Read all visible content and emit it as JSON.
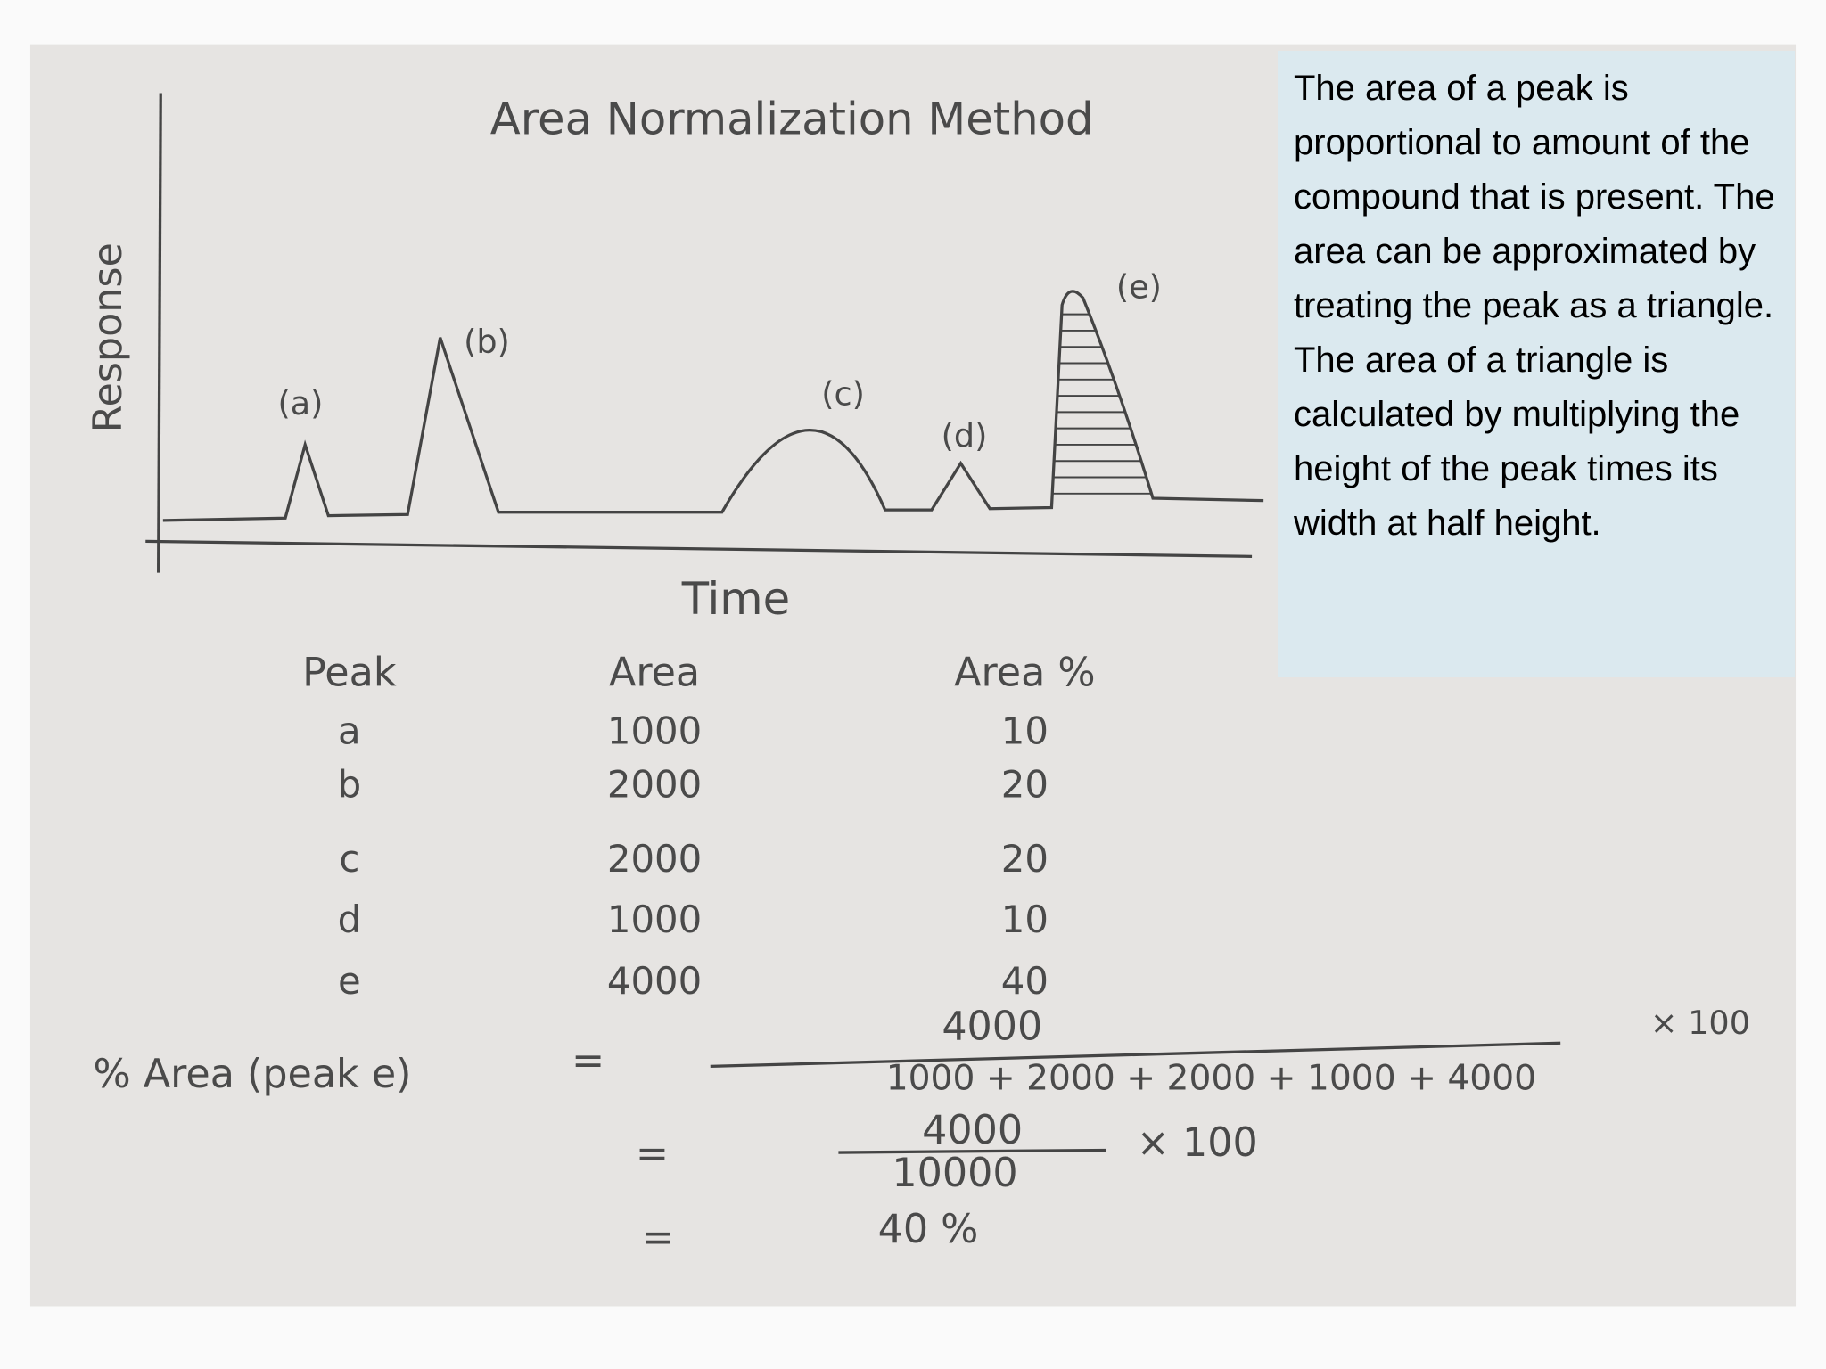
{
  "figure": {
    "title": "Area Normalization Method",
    "y_label": "Response",
    "x_label": "Time",
    "peak_labels": [
      "(a)",
      "(b)",
      "(c)",
      "(d)",
      "(e)"
    ]
  },
  "table": {
    "header": [
      "Peak",
      "Area",
      "Area %"
    ],
    "rows": [
      [
        "a",
        1000,
        10
      ],
      [
        "b",
        2000,
        20
      ],
      [
        "c",
        2000,
        20
      ],
      [
        "d",
        1000,
        10
      ],
      [
        "e",
        4000,
        40
      ]
    ]
  },
  "calculation": {
    "lhs": "% Area (peak e)",
    "equals": [
      "=",
      "=",
      "="
    ],
    "numerator": "4000",
    "denominator": "1000 + 2000 + 2000 + 1000 + 4000",
    "multiplier": "× 100",
    "step2_numerator": "4000",
    "step2_denominator": "10000",
    "step2_multiplier": "× 100",
    "result": "40 %"
  },
  "note": "The area of a peak is proportional to amount of the compound that is present. The area can be approximated by treating the peak as a triangle. The area of a triangle is calculated by multiplying the height of the peak times its width at half height."
}
